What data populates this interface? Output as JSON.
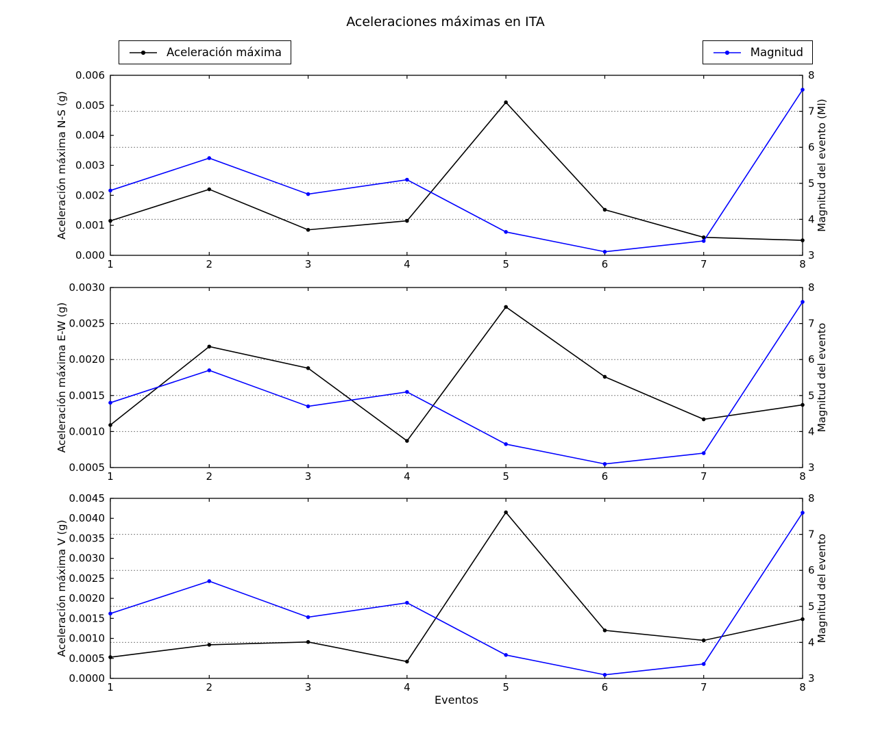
{
  "title": "Aceleraciones máximas en ITA",
  "xlabel": "Eventos",
  "legend": [
    {
      "label": "Aceleración máxima",
      "color": "#000000"
    },
    {
      "label": "Magnitud",
      "color": "#0000ff"
    }
  ],
  "colors": {
    "acceleration": "#000000",
    "magnitude": "#0000ff",
    "grid": "#565656",
    "background": "#ffffff"
  },
  "chart_data": [
    {
      "type": "line",
      "subplot": "N-S",
      "x": [
        1,
        2,
        3,
        4,
        5,
        6,
        7,
        8
      ],
      "xticks": [
        "1",
        "2",
        "3",
        "4",
        "5",
        "6",
        "7",
        "8"
      ],
      "ylabel_left": "Aceleración máxima N-S (g)",
      "ylabel_right": "Magnitud del evento (Ml)",
      "ylim_left": [
        0.0,
        0.006
      ],
      "yticks_left": [
        "0.000",
        "0.001",
        "0.002",
        "0.003",
        "0.004",
        "0.005",
        "0.006"
      ],
      "ylim_right": [
        3,
        8
      ],
      "yticks_right": [
        "3",
        "4",
        "5",
        "6",
        "7",
        "8"
      ],
      "grid": "horizontal dotted at right-axis ticks 4-7",
      "series": [
        {
          "key": "acceleration",
          "name": "Aceleración máxima",
          "axis": "left",
          "color": "#000000",
          "marker": "dot",
          "values": [
            0.00115,
            0.0022,
            0.00085,
            0.00115,
            0.0051,
            0.00152,
            0.0006,
            0.0005
          ]
        },
        {
          "key": "magnitude",
          "name": "Magnitud",
          "axis": "right",
          "color": "#0000ff",
          "marker": "dot",
          "values": [
            4.8,
            5.7,
            4.7,
            5.1,
            3.65,
            3.1,
            3.4,
            7.6
          ]
        }
      ]
    },
    {
      "type": "line",
      "subplot": "E-W",
      "x": [
        1,
        2,
        3,
        4,
        5,
        6,
        7,
        8
      ],
      "xticks": [
        "1",
        "2",
        "3",
        "4",
        "5",
        "6",
        "7",
        "8"
      ],
      "ylabel_left": "Aceleración máxima E-W (g)",
      "ylabel_right": "Magnitud del evento",
      "ylim_left": [
        0.0005,
        0.003
      ],
      "yticks_left": [
        "0.0005",
        "0.0010",
        "0.0015",
        "0.0020",
        "0.0025",
        "0.0030"
      ],
      "ylim_right": [
        3,
        8
      ],
      "yticks_right": [
        "3",
        "4",
        "5",
        "6",
        "7",
        "8"
      ],
      "grid": "horizontal dotted at right-axis ticks 4-7",
      "series": [
        {
          "key": "acceleration",
          "name": "Aceleración máxima",
          "axis": "left",
          "color": "#000000",
          "marker": "dot",
          "values": [
            0.00109,
            0.00218,
            0.00188,
            0.00087,
            0.00273,
            0.00176,
            0.00117,
            0.00137
          ]
        },
        {
          "key": "magnitude",
          "name": "Magnitud",
          "axis": "right",
          "color": "#0000ff",
          "marker": "dot",
          "values": [
            4.8,
            5.7,
            4.7,
            5.1,
            3.65,
            3.1,
            3.4,
            7.6
          ]
        }
      ]
    },
    {
      "type": "line",
      "subplot": "V",
      "x": [
        1,
        2,
        3,
        4,
        5,
        6,
        7,
        8
      ],
      "xticks": [
        "1",
        "2",
        "3",
        "4",
        "5",
        "6",
        "7",
        "8"
      ],
      "ylabel_left": "Aceleración máxima V (g)",
      "ylabel_right": "Magnitud del evento",
      "ylim_left": [
        0.0,
        0.0045
      ],
      "yticks_left": [
        "0.0000",
        "0.0005",
        "0.0010",
        "0.0015",
        "0.0020",
        "0.0025",
        "0.0030",
        "0.0035",
        "0.0040",
        "0.0045"
      ],
      "ylim_right": [
        3,
        8
      ],
      "yticks_right": [
        "3",
        "4",
        "5",
        "6",
        "7",
        "8"
      ],
      "grid": "horizontal dotted at right-axis ticks 4-7",
      "series": [
        {
          "key": "acceleration",
          "name": "Aceleración máxima",
          "axis": "left",
          "color": "#000000",
          "marker": "dot",
          "values": [
            0.00053,
            0.00084,
            0.00091,
            0.00042,
            0.00415,
            0.0012,
            0.00095,
            0.00148
          ]
        },
        {
          "key": "magnitude",
          "name": "Magnitud",
          "axis": "right",
          "color": "#0000ff",
          "marker": "dot",
          "values": [
            4.8,
            5.7,
            4.7,
            5.1,
            3.65,
            3.1,
            3.4,
            7.6
          ]
        }
      ]
    }
  ]
}
